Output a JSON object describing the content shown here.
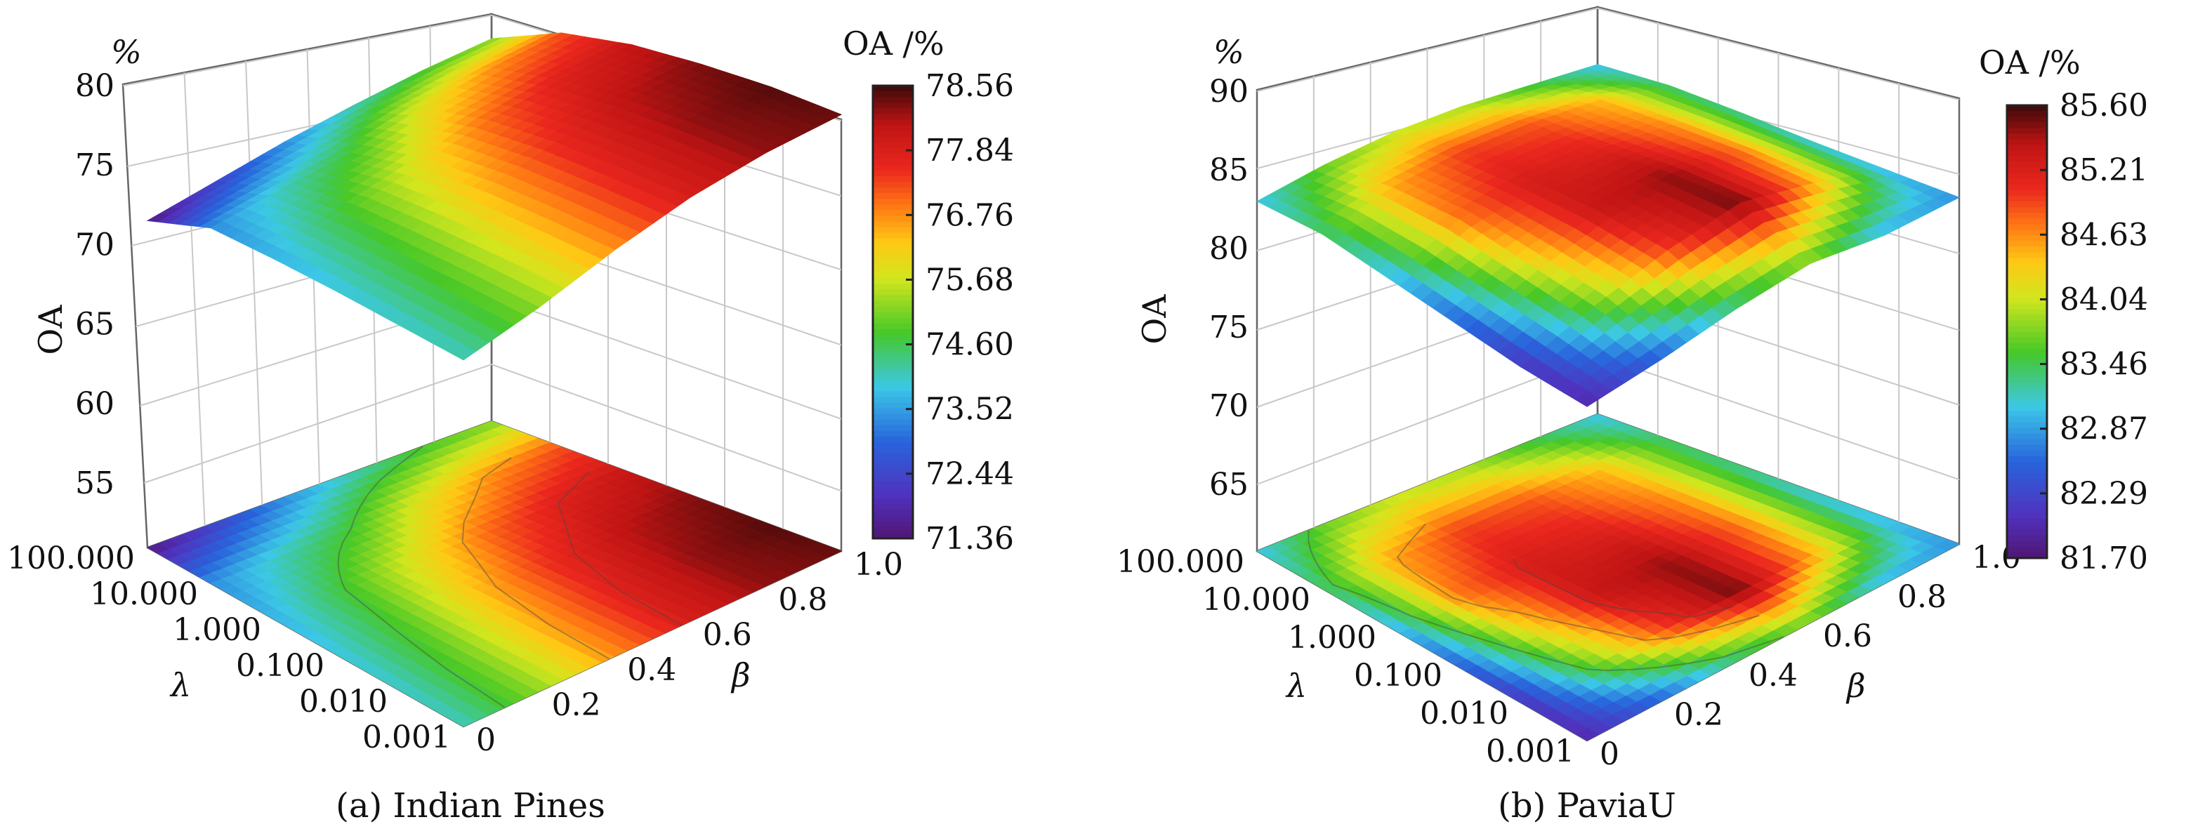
{
  "figure": {
    "panels": [
      {
        "caption": "(a) Indian Pines",
        "zunit": "%",
        "zlabel": "OA",
        "colorbar_title": "OA /%",
        "colorbar_ticks": [
          "78.56",
          "77.84",
          "76.76",
          "75.68",
          "74.60",
          "73.52",
          "72.44",
          "71.36"
        ],
        "z_ticks": [
          "80",
          "75",
          "70",
          "65",
          "60",
          "55"
        ],
        "lambda_ticks": [
          "100.000",
          "10.000",
          "1.000",
          "0.100",
          "0.010",
          "0.001"
        ],
        "beta_ticks": [
          "1.0",
          "0.8",
          "0.6",
          "0.4",
          "0.2",
          "0"
        ],
        "lambda_label": "λ",
        "beta_label": "β"
      },
      {
        "caption": "(b) PaviaU",
        "zunit": "%",
        "zlabel": "OA",
        "colorbar_title": "OA /%",
        "colorbar_ticks": [
          "85.60",
          "85.21",
          "84.63",
          "84.04",
          "83.46",
          "82.87",
          "82.29",
          "81.70"
        ],
        "z_ticks": [
          "90",
          "85",
          "80",
          "75",
          "70",
          "65"
        ],
        "lambda_ticks": [
          "100.000",
          "10.000",
          "1.000",
          "0.100",
          "0.010",
          "0.001"
        ],
        "beta_ticks": [
          "1.0",
          "0.8",
          "0.6",
          "0.4",
          "0.2",
          "0"
        ],
        "lambda_label": "λ",
        "beta_label": "β"
      }
    ]
  },
  "chart_data": [
    {
      "type": "surface",
      "caption": "(a) Indian Pines",
      "x": {
        "label": "λ",
        "ticks": [
          "100.000",
          "10.000",
          "1.000",
          "0.100",
          "0.010",
          "0.001"
        ],
        "scale": "log"
      },
      "y": {
        "label": "β",
        "ticks": [
          "0",
          "0.2",
          "0.4",
          "0.6",
          "0.8",
          "1.0"
        ]
      },
      "z": {
        "label": "OA",
        "unit": "%",
        "ticks": [
          55,
          60,
          65,
          70,
          75,
          80
        ],
        "range": [
          52,
          80
        ]
      },
      "colorbar": {
        "title": "OA /%",
        "range": [
          71.36,
          78.56
        ]
      },
      "lambda_values": [
        100,
        10,
        1,
        0.1,
        0.01,
        0.001
      ],
      "beta_values": [
        0,
        0.2,
        0.4,
        0.6,
        0.8,
        1.0
      ],
      "oa_values": [
        [
          71.5,
          72.4,
          73.3,
          74.0,
          74.6,
          75.0
        ],
        [
          73.3,
          74.0,
          74.6,
          75.7,
          76.5,
          77.0
        ],
        [
          73.6,
          74.6,
          75.7,
          76.8,
          77.5,
          77.9
        ],
        [
          73.8,
          74.8,
          76.2,
          77.3,
          78.0,
          78.3
        ],
        [
          73.9,
          75.0,
          76.4,
          77.5,
          78.2,
          78.5
        ],
        [
          74.0,
          75.1,
          76.5,
          77.6,
          78.2,
          78.4
        ]
      ],
      "projected_contour": true
    },
    {
      "type": "surface",
      "caption": "(b) PaviaU",
      "x": {
        "label": "λ",
        "ticks": [
          "100.000",
          "10.000",
          "1.000",
          "0.100",
          "0.010",
          "0.001"
        ],
        "scale": "log"
      },
      "y": {
        "label": "β",
        "ticks": [
          "0",
          "0.2",
          "0.4",
          "0.6",
          "0.8",
          "1.0"
        ]
      },
      "z": {
        "label": "OA",
        "unit": "%",
        "ticks": [
          65,
          70,
          75,
          80,
          85,
          90
        ],
        "range": [
          61,
          90
        ]
      },
      "colorbar": {
        "title": "OA /%",
        "range": [
          81.7,
          85.6
        ]
      },
      "lambda_values": [
        100,
        10,
        1,
        0.1,
        0.01,
        0.001
      ],
      "beta_values": [
        0,
        0.2,
        0.4,
        0.6,
        0.8,
        1.0
      ],
      "oa_values": [
        [
          83.0,
          83.6,
          83.9,
          83.8,
          83.4,
          83.0
        ],
        [
          83.3,
          84.4,
          84.8,
          84.7,
          84.3,
          83.3
        ],
        [
          82.9,
          84.6,
          85.1,
          85.0,
          84.5,
          83.2
        ],
        [
          82.5,
          84.1,
          85.2,
          85.4,
          84.6,
          83.0
        ],
        [
          82.1,
          83.6,
          84.8,
          85.5,
          84.4,
          82.9
        ],
        [
          82.0,
          82.5,
          83.2,
          83.6,
          82.9,
          82.8
        ]
      ],
      "projected_contour": true
    }
  ]
}
